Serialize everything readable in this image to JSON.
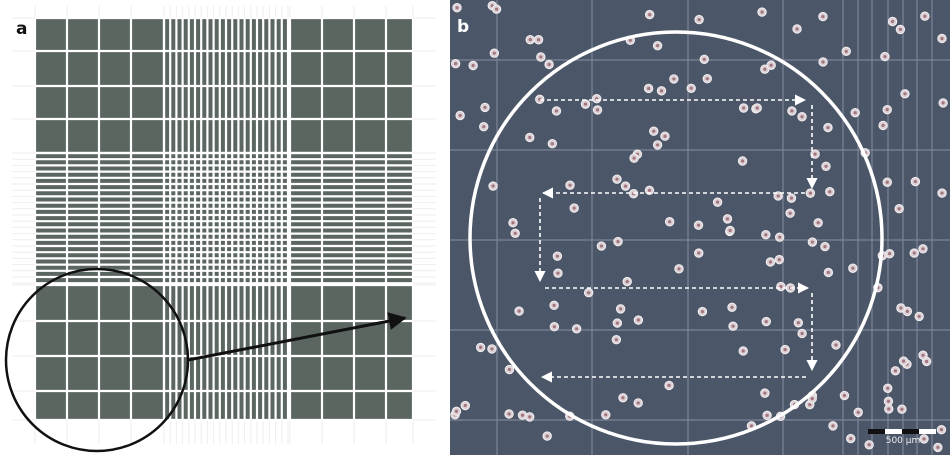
{
  "panels": [
    {
      "label": "a"
    },
    {
      "label": "b",
      "scale_bar": "500 µm"
    }
  ]
}
